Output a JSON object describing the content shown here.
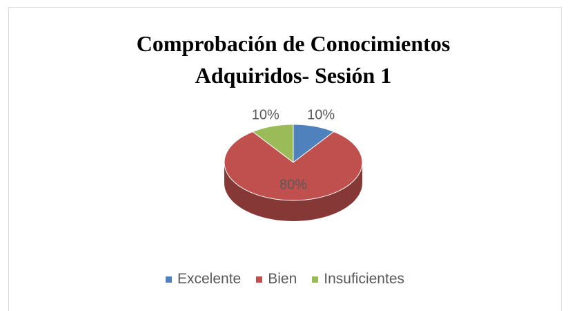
{
  "chart_data": {
    "type": "pie",
    "title": "Comprobación de Conocimientos Adquiridos- Sesión 1",
    "categories": [
      "Excelente",
      "Bien",
      "Insuficientes"
    ],
    "values": [
      10,
      80,
      10
    ],
    "value_labels": [
      "10%",
      "80%",
      "10%"
    ],
    "colors": [
      "#4f81bd",
      "#c0504d",
      "#9bbb59"
    ],
    "legend": "bottom"
  }
}
